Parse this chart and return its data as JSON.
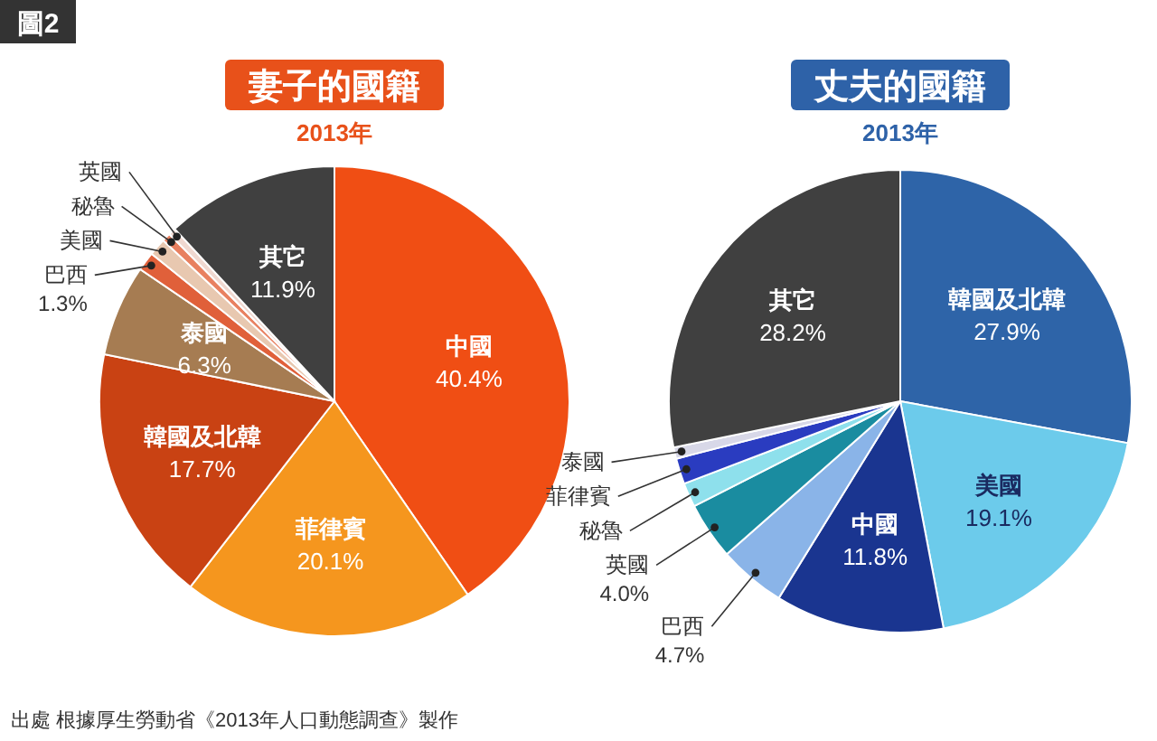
{
  "chart_data": [
    {
      "type": "pie",
      "title": "妻子的國籍",
      "subtitle": "2013年",
      "annotations": [
        "圖2"
      ],
      "categories": [
        "中國",
        "菲律賓",
        "韓國及北韓",
        "泰國",
        "巴西",
        "美國",
        "秘魯",
        "英國",
        "其它"
      ],
      "values": [
        40.4,
        20.1,
        17.7,
        6.3,
        1.3,
        1.2,
        0.6,
        0.5,
        11.9
      ],
      "value_labels": [
        "40.4%",
        "20.1%",
        "17.7%",
        "6.3%",
        "1.3%",
        null,
        null,
        null,
        "11.9%"
      ],
      "colors": [
        "#f04e14",
        "#f5961e",
        "#c94213",
        "#a67c52",
        "#e0603a",
        "#e8c8b0",
        "#e88060",
        "#f0d8d0",
        "#404040"
      ]
    },
    {
      "type": "pie",
      "title": "丈夫的國籍",
      "subtitle": "2013年",
      "annotations": [
        "出處 根據厚生勞動省《2013年人口動態調查》製作"
      ],
      "categories": [
        "韓國及北韓",
        "美國",
        "中國",
        "巴西",
        "英國",
        "秘魯",
        "菲律賓",
        "泰國",
        "其它"
      ],
      "values": [
        27.9,
        19.1,
        11.8,
        4.7,
        4.0,
        1.7,
        1.8,
        0.8,
        28.2
      ],
      "value_labels": [
        "27.9%",
        "19.1%",
        "11.8%",
        "4.7%",
        "4.0%",
        null,
        null,
        null,
        "28.2%"
      ],
      "colors": [
        "#2e64a8",
        "#6ccbeb",
        "#1a3590",
        "#8ab4e8",
        "#1a8ca0",
        "#8ee0ec",
        "#2a3cc0",
        "#d8d8e8",
        "#404040"
      ]
    }
  ]
}
